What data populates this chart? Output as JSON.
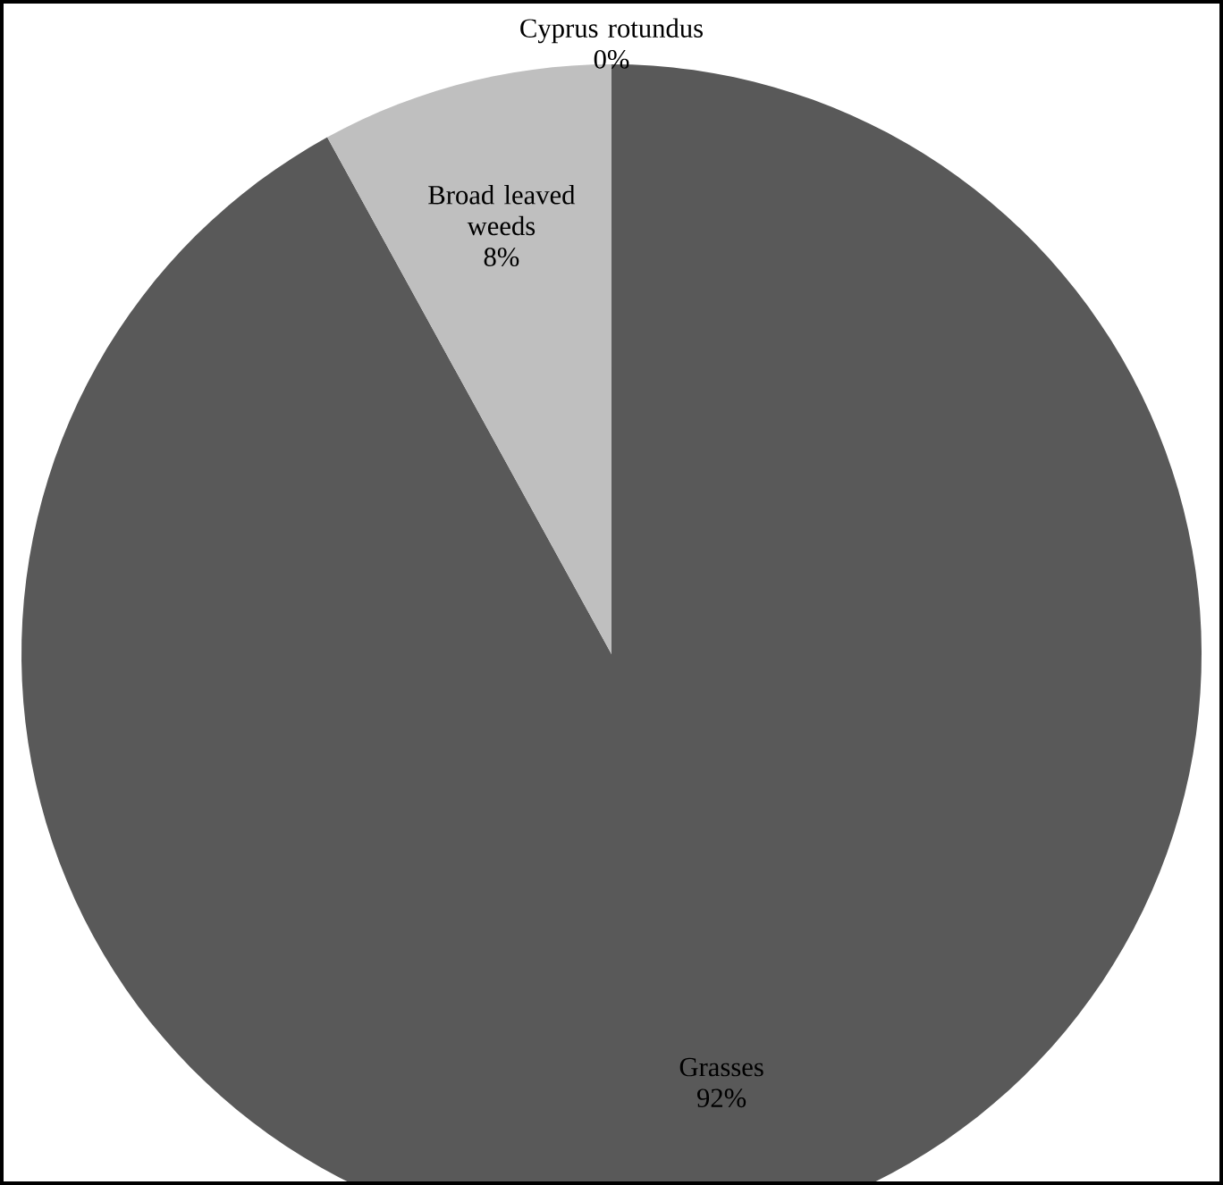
{
  "chart_data": {
    "type": "pie",
    "categories": [
      "Grasses",
      "Broad leaved weeds",
      "Cyprus rotundus"
    ],
    "values": [
      92,
      8,
      0
    ],
    "value_labels": [
      "92%",
      "8%",
      "0%"
    ],
    "colors": [
      "#595959",
      "#bfbfbf",
      "#d9d9d9"
    ]
  }
}
